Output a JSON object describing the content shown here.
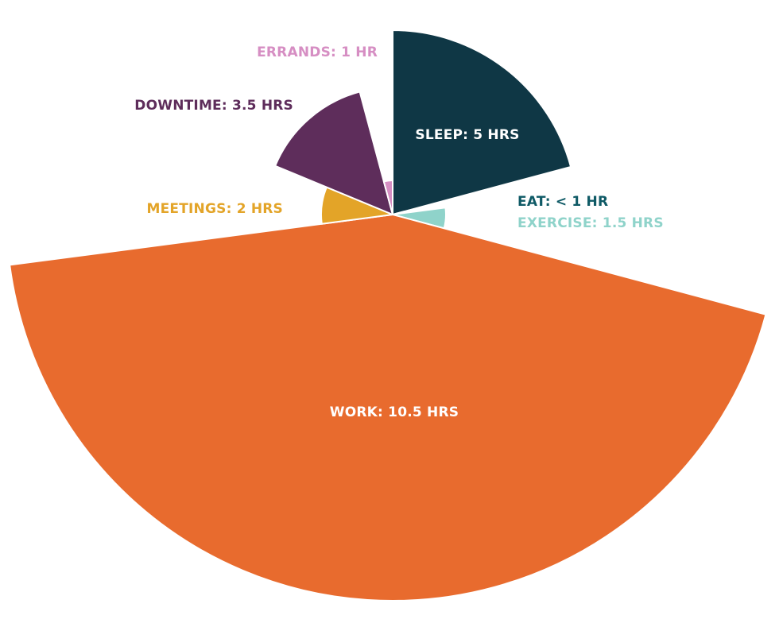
{
  "chart_data": {
    "type": "pie",
    "variant": "polar-area",
    "title": "",
    "start_angle_deg": 0,
    "direction": "clockwise",
    "slices": [
      {
        "name": "SLEEP",
        "label": "SLEEP: 5 HRS",
        "hours": 5,
        "color": "#0f3745"
      },
      {
        "name": "EAT",
        "label": "EAT: < 1 HR",
        "hours": 0.5,
        "color": "#0f3745"
      },
      {
        "name": "EXERCISE",
        "label": "EXERCISE: 1.5 HRS",
        "hours": 1.5,
        "color": "#8fd3ca"
      },
      {
        "name": "WORK",
        "label": "WORK: 10.5 HRS",
        "hours": 10.5,
        "color": "#e86b2e"
      },
      {
        "name": "MEETINGS",
        "label": "MEETINGS: 2 HRS",
        "hours": 2,
        "color": "#e3a428"
      },
      {
        "name": "DOWNTIME",
        "label": "DOWNTIME: 3.5 HRS",
        "hours": 3.5,
        "color": "#5e2d5b"
      },
      {
        "name": "ERRANDS",
        "label": "ERRANDS: 1 HR",
        "hours": 1,
        "color": "#d68ec3"
      }
    ],
    "label_colors": {
      "SLEEP": "#ffffff",
      "EAT": "#0f5a66",
      "EXERCISE": "#8fd3ca",
      "WORK": "#ffffff",
      "MEETINGS": "#e3a428",
      "DOWNTIME": "#5e2d5b",
      "ERRANDS": "#d68ec3"
    }
  }
}
